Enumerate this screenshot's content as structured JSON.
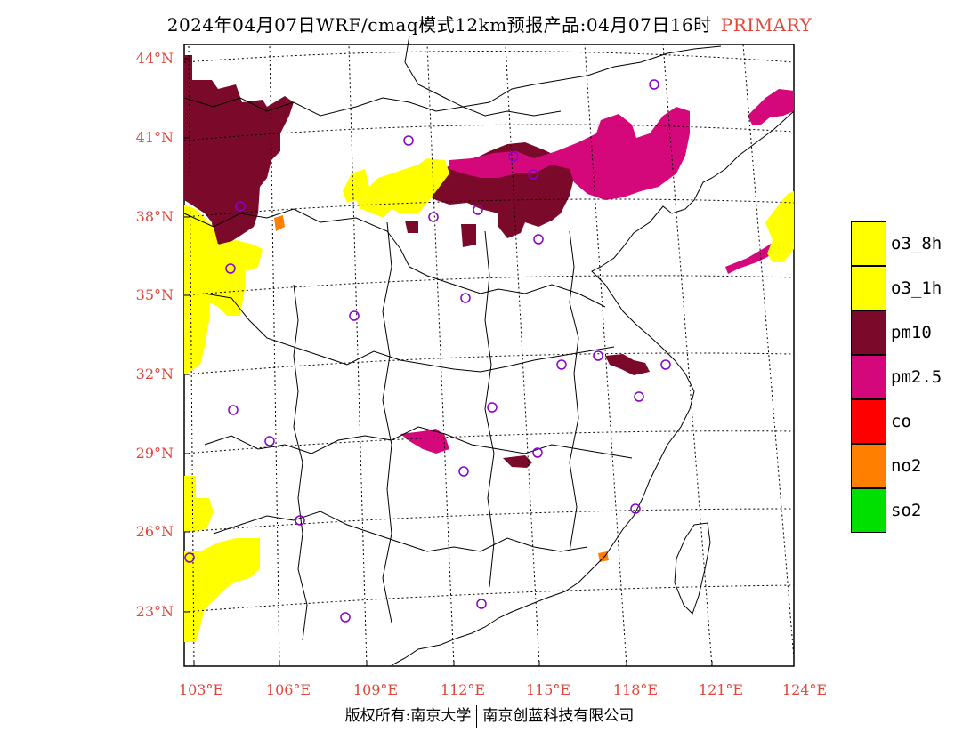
{
  "title": {
    "main": "2024年04月07日WRF/cmaq模式12km预报产品:04月07日16时",
    "tag": "PRIMARY"
  },
  "lat_labels": [
    "44°N",
    "41°N",
    "38°N",
    "35°N",
    "32°N",
    "29°N",
    "26°N",
    "23°N"
  ],
  "lon_labels": [
    "103°E",
    "106°E",
    "109°E",
    "112°E",
    "115°E",
    "118°E",
    "121°E",
    "124°E"
  ],
  "legend": [
    {
      "label": "o3_8h",
      "color": "#ffff00"
    },
    {
      "label": "o3_1h",
      "color": "#ffff00"
    },
    {
      "label": "pm10",
      "color": "#7b0a2a"
    },
    {
      "label": "pm2.5",
      "color": "#d4087a"
    },
    {
      "label": "co",
      "color": "#ff0000"
    },
    {
      "label": "no2",
      "color": "#ff7f00"
    },
    {
      "label": "so2",
      "color": "#00e000"
    }
  ],
  "footer": {
    "left": "版权所有:南京大学",
    "right": "南京创蓝科技有限公司"
  }
}
